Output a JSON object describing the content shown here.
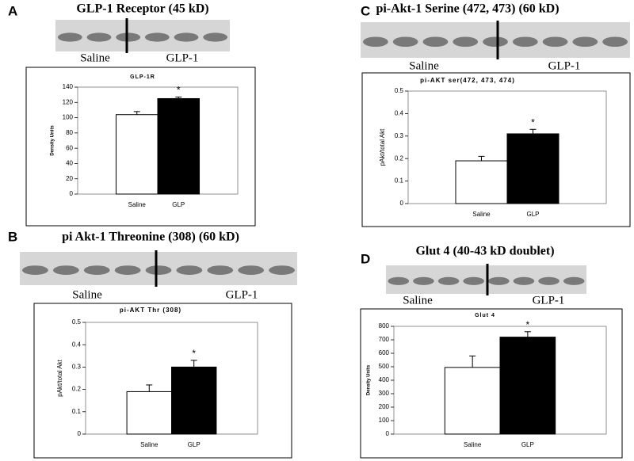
{
  "chart_data": [
    {
      "type": "bar",
      "panel": "A",
      "blot_title": "GLP-1 Receptor (45 kD)",
      "blot_labels": [
        "Saline",
        "GLP-1"
      ],
      "title": "GLP-1R",
      "y_label": "Density Units",
      "categories": [
        "Saline",
        "GLP"
      ],
      "values": [
        104,
        125
      ],
      "errors": [
        4,
        2
      ],
      "colors": [
        "#ffffff",
        "#000000"
      ],
      "annotation": "*",
      "ylim": [
        0,
        140
      ],
      "yticks": [
        0,
        20,
        40,
        60,
        80,
        100,
        120,
        140
      ]
    },
    {
      "type": "bar",
      "panel": "C",
      "blot_title": "pi-Akt-1 Serine (472, 473) (60 kD)",
      "blot_labels": [
        "Saline",
        "GLP-1"
      ],
      "title": "pi-AKT ser(472, 473, 474)",
      "y_label": "pAkt/total Akt",
      "categories": [
        "Saline",
        "GLP"
      ],
      "values": [
        0.19,
        0.31
      ],
      "errors": [
        0.02,
        0.02
      ],
      "colors": [
        "#ffffff",
        "#000000"
      ],
      "annotation": "*",
      "ylim": [
        0,
        0.5
      ],
      "yticks": [
        0,
        0.1,
        0.2,
        0.3,
        0.4,
        0.5
      ]
    },
    {
      "type": "bar",
      "panel": "B",
      "blot_title": "pi Akt-1 Threonine (308) (60 kD)",
      "blot_labels": [
        "Saline",
        "GLP-1"
      ],
      "title": "pi-AKT Thr (308)",
      "y_label": "pAkt/total Akt",
      "categories": [
        "Saline",
        "GLP"
      ],
      "values": [
        0.19,
        0.3
      ],
      "errors": [
        0.03,
        0.03
      ],
      "colors": [
        "#ffffff",
        "#000000"
      ],
      "annotation": "*",
      "ylim": [
        0,
        0.5
      ],
      "yticks": [
        0,
        0.1,
        0.2,
        0.3,
        0.4,
        0.5
      ]
    },
    {
      "type": "bar",
      "panel": "D",
      "blot_title": "Glut 4 (40-43 kD doublet)",
      "blot_labels": [
        "Saline",
        "GLP-1"
      ],
      "title": "Glut 4",
      "y_label": "Density Units",
      "categories": [
        "Saline",
        "GLP"
      ],
      "values": [
        495,
        720
      ],
      "errors": [
        85,
        40
      ],
      "colors": [
        "#ffffff",
        "#000000"
      ],
      "annotation": "*",
      "ylim": [
        0,
        800
      ],
      "yticks": [
        0,
        100,
        200,
        300,
        400,
        500,
        600,
        700,
        800
      ]
    }
  ]
}
